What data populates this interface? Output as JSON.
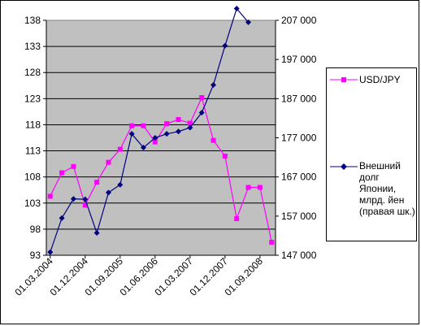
{
  "colors": {
    "plot_background": "#c0c0c0",
    "usd_jpy": "#ff00ff",
    "debt": "#000080",
    "gridline": "#000000"
  },
  "chart_data": {
    "type": "line",
    "title": "",
    "legend_position": "right",
    "grid": {
      "horizontal": true,
      "vertical": false
    },
    "x_ticks": [
      "01.03.2004",
      "01.12.2004",
      "01.09.2005",
      "01.06.2006",
      "01.03.2007",
      "01.12.2007",
      "01.09.2008"
    ],
    "y_left": {
      "min": 93,
      "max": 138,
      "ticks": [
        93,
        98,
        103,
        108,
        113,
        118,
        123,
        128,
        133,
        138
      ]
    },
    "y_right": {
      "min": 147000,
      "max": 207000,
      "ticks": [
        "147 000",
        "157 000",
        "167 000",
        "177 000",
        "187 000",
        "197 000",
        "207 000"
      ]
    },
    "series": [
      {
        "name": "USD/JPY",
        "axis": "left",
        "marker": "square",
        "values": [
          {
            "x": "2004-03",
            "y": 104.3
          },
          {
            "x": "2004-06",
            "y": 108.8
          },
          {
            "x": "2004-09",
            "y": 110.0
          },
          {
            "x": "2004-12",
            "y": 102.6
          },
          {
            "x": "2005-03",
            "y": 107.0
          },
          {
            "x": "2005-06",
            "y": 110.8
          },
          {
            "x": "2005-09",
            "y": 113.3
          },
          {
            "x": "2005-12",
            "y": 117.8
          },
          {
            "x": "2006-03",
            "y": 117.8
          },
          {
            "x": "2006-06",
            "y": 114.7
          },
          {
            "x": "2006-09",
            "y": 118.2
          },
          {
            "x": "2006-12",
            "y": 119.0
          },
          {
            "x": "2007-03",
            "y": 118.3
          },
          {
            "x": "2007-06",
            "y": 123.2
          },
          {
            "x": "2007-09",
            "y": 115.0
          },
          {
            "x": "2007-12",
            "y": 112.0
          },
          {
            "x": "2008-03",
            "y": 100.0
          },
          {
            "x": "2008-06",
            "y": 106.0
          },
          {
            "x": "2008-09",
            "y": 106.0
          },
          {
            "x": "2008-12",
            "y": 95.5
          }
        ]
      },
      {
        "name": "Внешний долг Японии, млрд. йен (правая шк.)",
        "axis": "right",
        "marker": "diamond",
        "values": [
          {
            "x": "2004-03",
            "y": 147800
          },
          {
            "x": "2004-06",
            "y": 156500
          },
          {
            "x": "2004-09",
            "y": 161400
          },
          {
            "x": "2004-12",
            "y": 161300
          },
          {
            "x": "2005-03",
            "y": 152700
          },
          {
            "x": "2005-06",
            "y": 163000
          },
          {
            "x": "2005-09",
            "y": 165000
          },
          {
            "x": "2005-12",
            "y": 178000
          },
          {
            "x": "2006-03",
            "y": 174500
          },
          {
            "x": "2006-06",
            "y": 177000
          },
          {
            "x": "2006-09",
            "y": 178000
          },
          {
            "x": "2006-12",
            "y": 178600
          },
          {
            "x": "2007-03",
            "y": 179600
          },
          {
            "x": "2007-06",
            "y": 183400
          },
          {
            "x": "2007-09",
            "y": 190500
          },
          {
            "x": "2007-12",
            "y": 200500
          },
          {
            "x": "2008-03",
            "y": 210000
          },
          {
            "x": "2008-06",
            "y": 206500
          }
        ]
      }
    ]
  },
  "legend": {
    "usd_jpy_label": "USD/JPY",
    "debt_label": "Внешний долг Японии, млрд. йен (правая шк.)"
  }
}
